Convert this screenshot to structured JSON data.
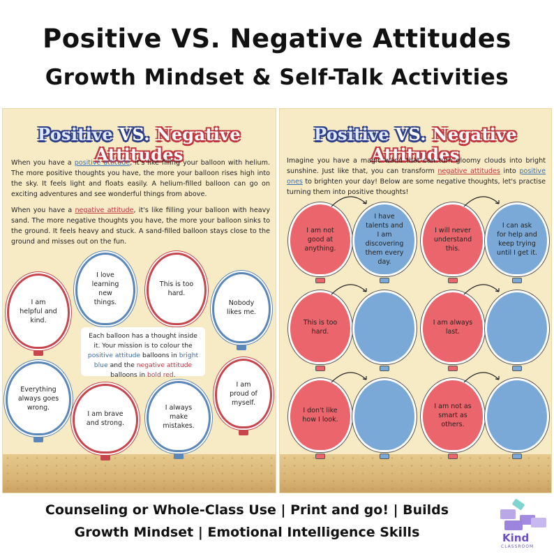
{
  "header": {
    "title": "Positive VS. Negative Attitudes",
    "subtitle": "Growth Mindset & Self-Talk Activities"
  },
  "left_page": {
    "title_positive": "Positive",
    "title_vs": "VS.",
    "title_negative": "Negative Attitudes",
    "para1": {
      "before": "When you have a ",
      "link": "positive attitude",
      "after": ", it's like filling your balloon with helium. The more positive thoughts you have, the more your balloon rises high into the sky. It feels light and floats easily. A helium-filled balloon can go on exciting adventures and see wonderful things from above."
    },
    "para2": {
      "before": "When you have a ",
      "link": "negative attitude",
      "after": ", it's like filling your balloon with heavy sand. The more negative thoughts you have, the more your balloon sinks to the ground. It feels heavy and stuck. A sand-filled balloon stays close to the ground and misses out on the fun."
    },
    "balloons": [
      {
        "text": "I love learning new things.",
        "color": "blue"
      },
      {
        "text": "This is too hard.",
        "color": "red"
      },
      {
        "text": "I am helpful and kind.",
        "color": "red"
      },
      {
        "text": "Nobody likes me.",
        "color": "blue"
      },
      {
        "text": "Everything always goes wrong.",
        "color": "blue"
      },
      {
        "text": "I am proud of myself.",
        "color": "red"
      },
      {
        "text": "I am brave and strong.",
        "color": "red"
      },
      {
        "text": "I always make mistakes.",
        "color": "blue"
      }
    ],
    "note": {
      "part1": "Each balloon has a thought inside it. Your mission is to colour the ",
      "positive": "positive attitude",
      "part2": " balloons in ",
      "blue": "bright blue",
      "part3": " and the ",
      "negative": "negative attitude",
      "part4": " balloons in ",
      "red": "bold red",
      "part5": "."
    }
  },
  "right_page": {
    "title_positive": "Positive",
    "title_vs": "VS.",
    "title_negative": "Negative Attitudes",
    "intro": {
      "part1": "Imagine you have a magic wand that can turn gloomy clouds into bright sunshine. Just like that, you can transform ",
      "negative": "negative attitudes",
      "part2": " into ",
      "positive": "positive ones",
      "part3": " to brighten your day! Below are some negative thoughts, let's practise turning them into positive thoughts!"
    },
    "pairs": [
      {
        "negative": "I am not good at anything.",
        "positive": "I have talents and I am discovering them every day."
      },
      {
        "negative": "I will never understand this.",
        "positive": "I can ask for help and keep trying until I get it."
      },
      {
        "negative": "This is too hard.",
        "positive": ""
      },
      {
        "negative": "I am always last.",
        "positive": ""
      },
      {
        "negative": "I don't like how I look.",
        "positive": ""
      },
      {
        "negative": "I am not as smart as others.",
        "positive": ""
      }
    ]
  },
  "footer": {
    "line1": "Counseling or Whole-Class Use | Print and go! | Builds",
    "line2": "Growth Mindset | Emotional Intelligence Skills"
  },
  "logo": {
    "name": "Kind",
    "sub": "CLASSROOM",
    "icon": "building-blocks-icon"
  },
  "colors": {
    "red": "#c7464e",
    "blue": "#5a86b8",
    "paper": "#f7ebc6"
  }
}
